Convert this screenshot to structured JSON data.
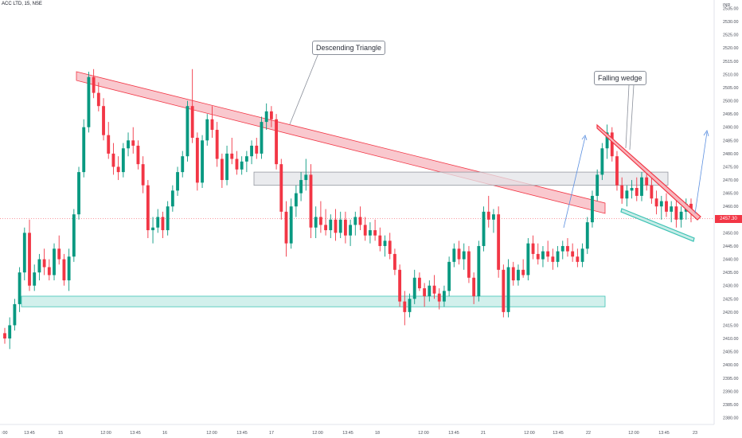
{
  "header": {
    "symbol": "ACC LTD, 15, NSE",
    "currency": "INR"
  },
  "annotations": {
    "descending_triangle": "Descending Triangle",
    "falling_wedge": "Falling wedge"
  },
  "last_price_label": "2457.30",
  "colors": {
    "up": "#089981",
    "down": "#f23645",
    "triangle_fill": "#f7b6bd",
    "triangle_stroke": "#f23645",
    "support_fill": "#c7ece7",
    "support_stroke": "#3cc2b4",
    "resistance_fill": "#e3e4e8",
    "resistance_stroke": "#9598a1",
    "arrow": "#5b8fe0"
  },
  "chart_data": {
    "type": "candlestick",
    "symbol": "ACC LTD",
    "interval": "15",
    "exchange": "NSE",
    "currency": "INR",
    "ylim": [
      2375,
      2540
    ],
    "y_ticks": [
      2380,
      2385,
      2390,
      2395,
      2400,
      2405,
      2410,
      2415,
      2420,
      2425,
      2430,
      2435,
      2440,
      2445,
      2450,
      2455,
      2460,
      2465,
      2470,
      2475,
      2480,
      2485,
      2490,
      2495,
      2500,
      2505,
      2510,
      2515,
      2520,
      2525,
      2530,
      2535
    ],
    "x_ticks": [
      ":00",
      "13:45",
      "15",
      "12:00",
      "13:45",
      "16",
      "12:00",
      "13:45",
      "17",
      "12:00",
      "13:45",
      "18",
      "12:00",
      "13:45",
      "21",
      "12:00",
      "13:45",
      "22",
      "12:00",
      "13:45",
      "23"
    ],
    "last_price": 2457.3,
    "candles": [
      [
        2412,
        2414,
        2408,
        2410
      ],
      [
        2410,
        2418,
        2406,
        2415
      ],
      [
        2415,
        2425,
        2413,
        2423
      ],
      [
        2423,
        2437,
        2420,
        2435
      ],
      [
        2435,
        2452,
        2432,
        2450
      ],
      [
        2450,
        2455,
        2428,
        2430
      ],
      [
        2430,
        2438,
        2428,
        2435
      ],
      [
        2435,
        2442,
        2432,
        2440
      ],
      [
        2440,
        2444,
        2434,
        2437
      ],
      [
        2437,
        2440,
        2432,
        2434
      ],
      [
        2434,
        2446,
        2432,
        2444
      ],
      [
        2444,
        2449,
        2438,
        2440
      ],
      [
        2440,
        2442,
        2430,
        2432
      ],
      [
        2432,
        2444,
        2428,
        2441
      ],
      [
        2441,
        2459,
        2439,
        2457
      ],
      [
        2457,
        2475,
        2455,
        2473
      ],
      [
        2473,
        2493,
        2471,
        2490
      ],
      [
        2490,
        2511,
        2488,
        2509
      ],
      [
        2509,
        2512,
        2501,
        2503
      ],
      [
        2503,
        2507,
        2496,
        2498
      ],
      [
        2498,
        2501,
        2485,
        2487
      ],
      [
        2487,
        2492,
        2478,
        2480
      ],
      [
        2480,
        2484,
        2472,
        2475
      ],
      [
        2475,
        2479,
        2470,
        2473
      ],
      [
        2473,
        2484,
        2471,
        2482
      ],
      [
        2482,
        2488,
        2479,
        2485
      ],
      [
        2485,
        2490,
        2480,
        2483
      ],
      [
        2483,
        2485,
        2474,
        2476
      ],
      [
        2476,
        2479,
        2465,
        2468
      ],
      [
        2468,
        2470,
        2448,
        2451
      ],
      [
        2451,
        2456,
        2446,
        2452
      ],
      [
        2452,
        2459,
        2450,
        2456
      ],
      [
        2456,
        2458,
        2448,
        2451
      ],
      [
        2451,
        2462,
        2449,
        2460
      ],
      [
        2460,
        2468,
        2458,
        2466
      ],
      [
        2466,
        2475,
        2464,
        2473
      ],
      [
        2473,
        2481,
        2471,
        2479
      ],
      [
        2479,
        2500,
        2477,
        2498
      ],
      [
        2498,
        2512,
        2484,
        2486
      ],
      [
        2486,
        2488,
        2466,
        2469
      ],
      [
        2469,
        2487,
        2467,
        2485
      ],
      [
        2485,
        2495,
        2483,
        2493
      ],
      [
        2493,
        2498,
        2486,
        2489
      ],
      [
        2489,
        2492,
        2475,
        2478
      ],
      [
        2478,
        2480,
        2467,
        2470
      ],
      [
        2470,
        2483,
        2468,
        2480
      ],
      [
        2480,
        2486,
        2476,
        2478
      ],
      [
        2478,
        2481,
        2472,
        2474
      ],
      [
        2474,
        2479,
        2472,
        2477
      ],
      [
        2477,
        2481,
        2473,
        2479
      ],
      [
        2479,
        2485,
        2476,
        2483
      ],
      [
        2483,
        2486,
        2478,
        2480
      ],
      [
        2480,
        2494,
        2478,
        2492
      ],
      [
        2492,
        2499,
        2489,
        2496
      ],
      [
        2496,
        2498,
        2490,
        2493
      ],
      [
        2493,
        2495,
        2474,
        2476
      ],
      [
        2476,
        2478,
        2455,
        2458
      ],
      [
        2458,
        2462,
        2441,
        2446
      ],
      [
        2446,
        2463,
        2444,
        2460
      ],
      [
        2460,
        2468,
        2456,
        2465
      ],
      [
        2465,
        2473,
        2462,
        2470
      ],
      [
        2470,
        2478,
        2466,
        2472
      ],
      [
        2472,
        2476,
        2448,
        2452
      ],
      [
        2452,
        2460,
        2448,
        2456
      ],
      [
        2456,
        2462,
        2450,
        2453
      ],
      [
        2453,
        2459,
        2449,
        2451
      ],
      [
        2451,
        2457,
        2448,
        2455
      ],
      [
        2455,
        2459,
        2447,
        2450
      ],
      [
        2450,
        2458,
        2448,
        2455
      ],
      [
        2455,
        2458,
        2446,
        2449
      ],
      [
        2449,
        2455,
        2445,
        2453
      ],
      [
        2453,
        2458,
        2449,
        2456
      ],
      [
        2456,
        2460,
        2451,
        2453
      ],
      [
        2453,
        2456,
        2447,
        2449
      ],
      [
        2449,
        2454,
        2446,
        2451
      ],
      [
        2451,
        2455,
        2447,
        2449
      ],
      [
        2449,
        2452,
        2443,
        2445
      ],
      [
        2445,
        2449,
        2441,
        2447
      ],
      [
        2447,
        2450,
        2440,
        2442
      ],
      [
        2442,
        2444,
        2434,
        2436
      ],
      [
        2436,
        2438,
        2422,
        2424
      ],
      [
        2424,
        2428,
        2415,
        2420
      ],
      [
        2420,
        2427,
        2418,
        2425
      ],
      [
        2425,
        2436,
        2423,
        2433
      ],
      [
        2433,
        2435,
        2428,
        2429
      ],
      [
        2429,
        2431,
        2422,
        2426
      ],
      [
        2426,
        2432,
        2424,
        2430
      ],
      [
        2430,
        2434,
        2425,
        2427
      ],
      [
        2427,
        2429,
        2421,
        2424
      ],
      [
        2424,
        2430,
        2422,
        2428
      ],
      [
        2428,
        2441,
        2426,
        2439
      ],
      [
        2439,
        2446,
        2437,
        2444
      ],
      [
        2444,
        2447,
        2438,
        2440
      ],
      [
        2440,
        2446,
        2436,
        2443
      ],
      [
        2443,
        2445,
        2431,
        2433
      ],
      [
        2433,
        2435,
        2423,
        2426
      ],
      [
        2426,
        2447,
        2424,
        2445
      ],
      [
        2445,
        2460,
        2443,
        2458
      ],
      [
        2458,
        2464,
        2452,
        2455
      ],
      [
        2455,
        2459,
        2450,
        2457
      ],
      [
        2457,
        2460,
        2433,
        2436
      ],
      [
        2436,
        2438,
        2418,
        2420
      ],
      [
        2420,
        2440,
        2418,
        2437
      ],
      [
        2437,
        2439,
        2430,
        2432
      ],
      [
        2432,
        2438,
        2430,
        2436
      ],
      [
        2436,
        2440,
        2433,
        2434
      ],
      [
        2434,
        2448,
        2432,
        2446
      ],
      [
        2446,
        2449,
        2440,
        2442
      ],
      [
        2442,
        2446,
        2438,
        2440
      ],
      [
        2440,
        2445,
        2437,
        2443
      ],
      [
        2443,
        2447,
        2439,
        2441
      ],
      [
        2441,
        2444,
        2436,
        2439
      ],
      [
        2439,
        2445,
        2437,
        2443
      ],
      [
        2443,
        2447,
        2440,
        2445
      ],
      [
        2445,
        2448,
        2441,
        2443
      ],
      [
        2443,
        2446,
        2439,
        2441
      ],
      [
        2441,
        2444,
        2437,
        2439
      ],
      [
        2439,
        2446,
        2437,
        2444
      ],
      [
        2444,
        2456,
        2442,
        2454
      ],
      [
        2454,
        2466,
        2452,
        2464
      ],
      [
        2464,
        2474,
        2462,
        2472
      ],
      [
        2472,
        2484,
        2470,
        2482
      ],
      [
        2482,
        2491,
        2478,
        2488
      ],
      [
        2488,
        2490,
        2477,
        2479
      ],
      [
        2479,
        2481,
        2466,
        2468
      ],
      [
        2468,
        2471,
        2461,
        2463
      ],
      [
        2463,
        2468,
        2460,
        2466
      ],
      [
        2466,
        2470,
        2463,
        2467
      ],
      [
        2467,
        2471,
        2462,
        2464
      ],
      [
        2464,
        2473,
        2462,
        2471
      ],
      [
        2471,
        2474,
        2466,
        2468
      ],
      [
        2468,
        2471,
        2461,
        2463
      ],
      [
        2463,
        2466,
        2457,
        2460
      ],
      [
        2460,
        2464,
        2455,
        2462
      ],
      [
        2462,
        2465,
        2456,
        2458
      ],
      [
        2458,
        2462,
        2454,
        2460
      ],
      [
        2460,
        2463,
        2452,
        2455
      ],
      [
        2455,
        2460,
        2452,
        2458
      ],
      [
        2458,
        2463,
        2455,
        2461
      ],
      [
        2461,
        2463,
        2454,
        2457.3
      ]
    ]
  }
}
